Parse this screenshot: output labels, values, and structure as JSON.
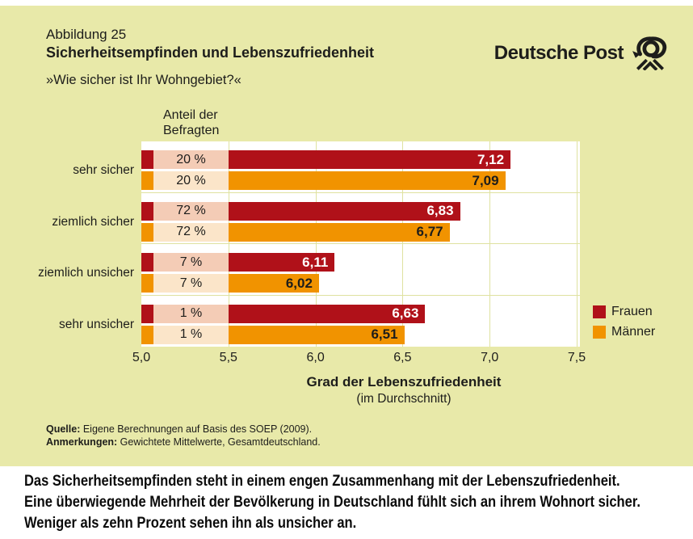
{
  "header": {
    "figure_label": "Abbildung 25",
    "title": "Sicherheitsempfinden und Lebenszufriedenheit",
    "subtitle": "»Wie sicher ist Ihr Wohngebiet?«",
    "brand": "Deutsche Post"
  },
  "chart_data": {
    "type": "bar",
    "orientation": "horizontal",
    "column_header": "Anteil der\nBefragten",
    "categories": [
      "sehr sicher",
      "ziemlich sicher",
      "ziemlich unsicher",
      "sehr unsicher"
    ],
    "series": [
      {
        "name": "Frauen",
        "key": "frauen",
        "color": "#B01119",
        "value_color": "#ffffff",
        "share_bg": "#F4CCB6",
        "values": [
          7.12,
          6.83,
          6.11,
          6.63
        ],
        "labels": [
          "7,12",
          "6,83",
          "6,11",
          "6,63"
        ],
        "shares": [
          "20 %",
          "72 %",
          "7 %",
          "1 %"
        ]
      },
      {
        "name": "Männer",
        "key": "maenner",
        "color": "#F19300",
        "value_color": "#1d1d1b",
        "share_bg": "#FBE5C9",
        "values": [
          7.09,
          6.77,
          6.02,
          6.51
        ],
        "labels": [
          "7,09",
          "6,77",
          "6,02",
          "6,51"
        ],
        "shares": [
          "20 %",
          "72 %",
          "7 %",
          "1 %"
        ]
      }
    ],
    "xlabel": "Grad der Lebenszufriedenheit",
    "xlabel_sub": "(im Durchschnitt)",
    "xlim": [
      5.0,
      7.5
    ],
    "xticks": [
      "5,0",
      "5,5",
      "6,0",
      "6,5",
      "7,0",
      "7,5"
    ],
    "grid": true,
    "legend_position": "right"
  },
  "colors": {
    "card_background": "#E8E9A9",
    "plot_background": "#ffffff",
    "gridline": "#DFE2A0",
    "frauen": "#B01119",
    "maenner": "#F19300"
  },
  "footnotes": {
    "source_label": "Quelle:",
    "source_text": " Eigene Berechnungen auf Basis des SOEP (2009).",
    "notes_label": "Anmerkungen:",
    "notes_text": " Gewichtete Mittelwerte, Gesamtdeutschland."
  },
  "summary": {
    "lines": [
      "Das Sicherheitsempfinden steht in einem engen Zusammenhang mit der Lebenszufriedenheit.",
      "Eine überwiegende Mehrheit der Bevölkerung in Deutschland fühlt sich an ihrem Wohnort sicher.",
      "Weniger als zehn Prozent sehen ihn als unsicher an."
    ]
  }
}
